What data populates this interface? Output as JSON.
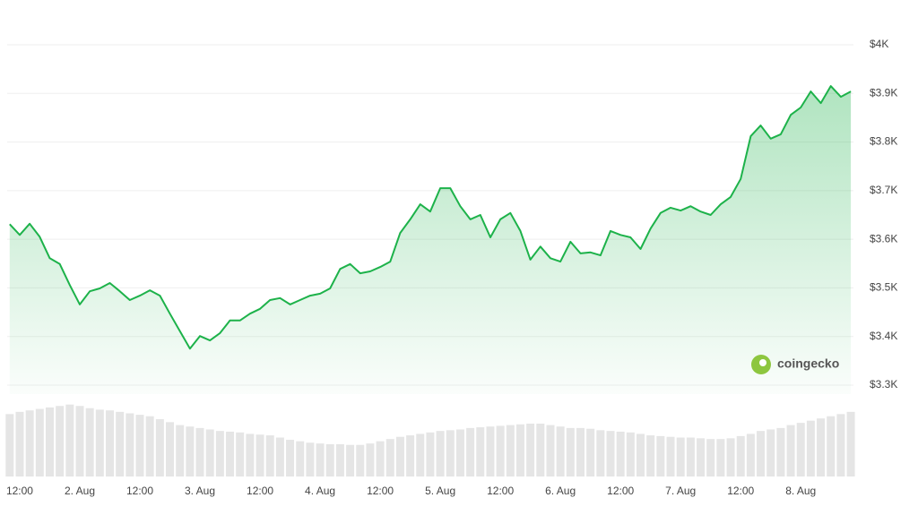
{
  "chart_data": {
    "type": "line",
    "watermark": "coingecko",
    "color": "#1db24a",
    "volume_color": "#e5e5e5",
    "grid": true,
    "ylim": [
      3300,
      4000
    ],
    "yticks": [
      {
        "value": 3300,
        "label": "$3.3K"
      },
      {
        "value": 3400,
        "label": "$3.4K"
      },
      {
        "value": 3500,
        "label": "$3.5K"
      },
      {
        "value": 3600,
        "label": "$3.6K"
      },
      {
        "value": 3700,
        "label": "$3.7K"
      },
      {
        "value": 3800,
        "label": "$3.8K"
      },
      {
        "value": 3900,
        "label": "$3.9K"
      },
      {
        "value": 4000,
        "label": "$4K"
      }
    ],
    "categories": [
      null,
      "12:00",
      null,
      null,
      null,
      null,
      null,
      "2. Aug",
      null,
      null,
      null,
      null,
      null,
      "12:00",
      null,
      null,
      null,
      null,
      null,
      "3. Aug",
      null,
      null,
      null,
      null,
      null,
      "12:00",
      null,
      null,
      null,
      null,
      null,
      "4. Aug",
      null,
      null,
      null,
      null,
      null,
      "12:00",
      null,
      null,
      null,
      null,
      null,
      "5. Aug",
      null,
      null,
      null,
      null,
      null,
      "12:00",
      null,
      null,
      null,
      null,
      null,
      "6. Aug",
      null,
      null,
      null,
      null,
      null,
      "12:00",
      null,
      null,
      null,
      null,
      null,
      "7. Aug",
      null,
      null,
      null,
      null,
      null,
      "12:00",
      null,
      null,
      null,
      null,
      null,
      "8. Aug",
      null,
      null,
      null,
      null,
      null
    ],
    "values": [
      3631,
      3609,
      3632,
      3605,
      3561,
      3549,
      3506,
      3466,
      3493,
      3499,
      3510,
      3493,
      3475,
      3484,
      3495,
      3484,
      3447,
      3411,
      3375,
      3401,
      3392,
      3407,
      3433,
      3433,
      3447,
      3457,
      3475,
      3479,
      3466,
      3475,
      3484,
      3488,
      3499,
      3539,
      3549,
      3530,
      3534,
      3543,
      3554,
      3613,
      3641,
      3672,
      3657,
      3705,
      3705,
      3668,
      3641,
      3650,
      3604,
      3641,
      3654,
      3617,
      3558,
      3585,
      3561,
      3554,
      3595,
      3571,
      3573,
      3567,
      3617,
      3609,
      3604,
      3580,
      3622,
      3654,
      3665,
      3659,
      3668,
      3657,
      3650,
      3672,
      3687,
      3724,
      3812,
      3834,
      3807,
      3816,
      3856,
      3871,
      3904,
      3880,
      3915,
      3893,
      3904
    ],
    "volume": [
      85,
      88,
      90,
      92,
      94,
      96,
      98,
      96,
      93,
      91,
      90,
      88,
      86,
      84,
      82,
      78,
      74,
      70,
      68,
      66,
      64,
      62,
      61,
      60,
      58,
      57,
      56,
      53,
      50,
      48,
      46,
      45,
      44,
      44,
      43,
      43,
      45,
      48,
      51,
      54,
      56,
      58,
      60,
      62,
      63,
      64,
      66,
      67,
      68,
      69,
      70,
      71,
      72,
      72,
      70,
      68,
      66,
      66,
      65,
      63,
      62,
      61,
      60,
      58,
      56,
      55,
      54,
      53,
      53,
      52,
      51,
      51,
      52,
      55,
      58,
      62,
      64,
      66,
      70,
      73,
      76,
      79,
      82,
      85,
      88
    ]
  }
}
